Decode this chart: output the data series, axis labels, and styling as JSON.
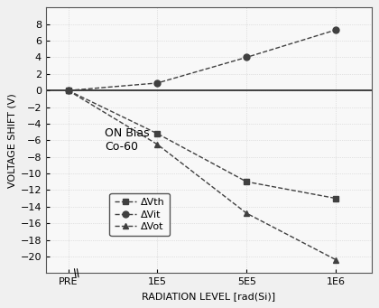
{
  "x_labels": [
    "PRE",
    "1E5",
    "5E5",
    "1E6"
  ],
  "x_values": [
    0,
    1,
    2,
    3
  ],
  "series": {
    "DVth": {
      "y": [
        0,
        -5.2,
        -11.0,
        -13.0
      ],
      "marker": "s",
      "color": "#404040",
      "label": "ΔVth"
    },
    "DVit": {
      "y": [
        0,
        0.9,
        4.0,
        7.3
      ],
      "marker": "o",
      "color": "#404040",
      "label": "ΔVit"
    },
    "DVot": {
      "y": [
        0,
        -6.5,
        -14.8,
        -20.4
      ],
      "marker": "^",
      "color": "#404040",
      "label": "ΔVot"
    }
  },
  "ylim": [
    -22,
    10
  ],
  "yticks": [
    -20,
    -18,
    -16,
    -14,
    -12,
    -10,
    -8,
    -6,
    -4,
    -2,
    0,
    2,
    4,
    6,
    8
  ],
  "ylabel": "VOLTAGE SHIFT (V)",
  "xlabel": "RADIATION LEVEL [rad(Si)]",
  "annotation_text": "ON Bias\nCo-60",
  "bg_color": "#f0f0f0",
  "plot_bg": "#f8f8f8",
  "grid_color": "#cccccc"
}
